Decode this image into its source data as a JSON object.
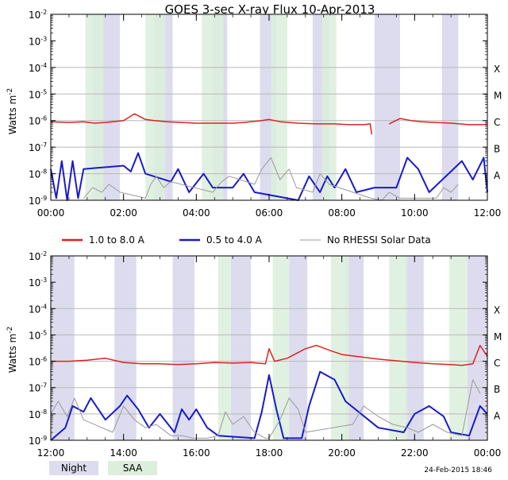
{
  "title": "GOES 3-sec X-ray Flux   10-Apr-2013",
  "ylabel": "Watts m",
  "ylabel_sup": "-2",
  "y_ticks": [
    {
      "exp": -2,
      "label_base": "10",
      "label_exp": "-2"
    },
    {
      "exp": -3,
      "label_base": "10",
      "label_exp": "-3"
    },
    {
      "exp": -4,
      "label_base": "10",
      "label_exp": "-4"
    },
    {
      "exp": -5,
      "label_base": "10",
      "label_exp": "-5"
    },
    {
      "exp": -6,
      "label_base": "10",
      "label_exp": "-6"
    },
    {
      "exp": -7,
      "label_base": "10",
      "label_exp": "-7"
    },
    {
      "exp": -8,
      "label_base": "10",
      "label_exp": "-8"
    },
    {
      "exp": -9,
      "label_base": "10",
      "label_exp": "-9"
    }
  ],
  "flare_classes": [
    {
      "label": "X",
      "exp": -4
    },
    {
      "label": "M",
      "exp": -5
    },
    {
      "label": "C",
      "exp": -6
    },
    {
      "label": "B",
      "exp": -7
    },
    {
      "label": "A",
      "exp": -8
    }
  ],
  "legend": [
    {
      "label": "1.0 to 8.0 A",
      "color": "#dd2222"
    },
    {
      "label": "0.5 to 4.0 A",
      "color": "#1a1acc"
    },
    {
      "label": "No RHESSI Solar Data",
      "color": "#999999"
    }
  ],
  "shade_legend": [
    {
      "label": "Night",
      "color": "#dcdcee"
    },
    {
      "label": "SAA",
      "color": "#dcefdc"
    }
  ],
  "timestamp": "24-Feb-2015 18:46",
  "colors": {
    "long": "#dd2222",
    "short": "#1a1acc",
    "norhessi": "#999999",
    "night": "#dcdcee",
    "saa": "#dcefdc"
  },
  "chart_data": [
    {
      "type": "line",
      "panel": "top",
      "x_range_hours": [
        0,
        12
      ],
      "x_ticks": [
        "00:00",
        "02:00",
        "04:00",
        "06:00",
        "08:00",
        "10:00",
        "12:00"
      ],
      "ylim_log10": [
        -9,
        -2
      ],
      "night_intervals": [
        [
          1.15,
          1.9
        ],
        [
          2.85,
          3.35
        ],
        [
          4.45,
          4.85
        ],
        [
          5.75,
          6.2
        ],
        [
          7.2,
          7.65
        ],
        [
          8.9,
          9.6
        ],
        [
          10.75,
          11.2
        ]
      ],
      "saa_intervals": [
        [
          0.95,
          1.45
        ],
        [
          2.6,
          3.15
        ],
        [
          4.15,
          4.75
        ],
        [
          6.05,
          6.5
        ],
        [
          7.45,
          7.85
        ]
      ],
      "series": [
        {
          "name": "1.0 to 8.0 A",
          "x": [
            0.0,
            0.5,
            0.9,
            1.2,
            1.5,
            2.0,
            2.3,
            2.6,
            2.85,
            3.2,
            3.6,
            4.0,
            4.5,
            5.0,
            5.3,
            5.8,
            6.0,
            6.3,
            6.8,
            7.3,
            7.8,
            8.2,
            8.6,
            8.78,
            8.82
          ],
          "y": [
            9e-07,
            8.5e-07,
            9e-07,
            8e-07,
            8.5e-07,
            1e-06,
            1.8e-06,
            1.1e-06,
            1e-06,
            9e-07,
            8.5e-07,
            8e-07,
            8e-07,
            8e-07,
            8.5e-07,
            1e-06,
            1.1e-06,
            9e-07,
            8e-07,
            7.5e-07,
            7.5e-07,
            7e-07,
            7e-07,
            7.5e-07,
            3e-07
          ]
        },
        {
          "name": "1.0 to 8.0 A (post gap)",
          "x": [
            9.3,
            9.6,
            9.9,
            10.2,
            10.6,
            11.0,
            11.5,
            12.0
          ],
          "y": [
            7.5e-07,
            1.2e-06,
            1e-06,
            9e-07,
            8.5e-07,
            8e-07,
            7e-07,
            7e-07
          ]
        },
        {
          "name": "0.5 to 4.0 A",
          "x": [
            0.0,
            0.15,
            0.3,
            0.45,
            0.6,
            0.75,
            0.9,
            2.0,
            2.2,
            2.4,
            2.6,
            3.3,
            3.5,
            3.8,
            4.2,
            4.45,
            5.0,
            5.3,
            5.6,
            6.8,
            7.1,
            7.4,
            7.6,
            7.8,
            8.1,
            8.4,
            8.9,
            9.5,
            9.8,
            10.1,
            10.4,
            11.3,
            11.6,
            11.9,
            12.0
          ],
          "y": [
            1.5e-08,
            1.2e-09,
            3e-08,
            1e-09,
            3e-08,
            1.2e-09,
            1.5e-08,
            2e-08,
            1.2e-08,
            6e-08,
            1e-08,
            5e-09,
            1.5e-08,
            2e-09,
            1e-08,
            3e-09,
            3e-09,
            1e-08,
            2e-09,
            1e-09,
            8e-09,
            2e-09,
            8e-09,
            3e-09,
            1.5e-08,
            2e-09,
            3e-09,
            3e-09,
            4e-08,
            1.5e-08,
            2e-09,
            3e-08,
            6e-09,
            4e-08,
            2e-09
          ]
        },
        {
          "name": "No RHESSI Solar Data",
          "x": [
            0.9,
            1.15,
            1.4,
            1.6,
            1.9,
            2.6,
            2.75,
            2.9,
            3.1,
            3.3,
            4.45,
            4.7,
            4.9,
            5.6,
            5.8,
            6.05,
            6.3,
            6.55,
            6.75,
            7.2,
            7.4,
            7.65,
            8.8,
            9.1,
            9.3,
            9.6,
            10.6,
            10.8,
            11.0,
            11.2
          ],
          "y": [
            1.2e-09,
            3e-09,
            2e-09,
            4e-09,
            2e-09,
            1.2e-09,
            4e-09,
            8e-09,
            3e-09,
            5e-09,
            2e-09,
            5e-09,
            8e-09,
            4e-09,
            1.5e-08,
            4e-08,
            6e-09,
            1.5e-08,
            3e-09,
            2e-09,
            1e-08,
            4e-09,
            1.2e-09,
            1e-09,
            2e-09,
            1.2e-09,
            1.2e-09,
            3e-09,
            2e-09,
            4e-09
          ]
        }
      ]
    },
    {
      "type": "line",
      "panel": "bottom",
      "x_range_hours": [
        12,
        24
      ],
      "x_ticks": [
        "12:00",
        "14:00",
        "16:00",
        "18:00",
        "20:00",
        "22:00",
        "00:00"
      ],
      "ylim_log10": [
        -9,
        -2
      ],
      "night_intervals": [
        [
          12.0,
          12.65
        ],
        [
          13.75,
          14.35
        ],
        [
          15.35,
          15.95
        ],
        [
          16.95,
          17.5
        ],
        [
          18.55,
          19.05
        ],
        [
          20.1,
          20.6
        ],
        [
          21.75,
          22.25
        ],
        [
          23.45,
          24.0
        ]
      ],
      "saa_intervals": [
        [
          16.6,
          16.95
        ],
        [
          18.1,
          18.55
        ],
        [
          19.7,
          20.2
        ],
        [
          21.3,
          21.8
        ],
        [
          22.95,
          23.45
        ]
      ],
      "series": [
        {
          "name": "1.0 to 8.0 A",
          "x": [
            12.0,
            12.5,
            13.0,
            13.5,
            14.0,
            14.5,
            15.0,
            15.5,
            16.0,
            16.5,
            17.0,
            17.5,
            17.9,
            18.0,
            18.15,
            18.5,
            19.0,
            19.3,
            19.7,
            20.0,
            21.0,
            22.0,
            22.5,
            23.0,
            23.3,
            23.6,
            23.8,
            24.0
          ],
          "y": [
            1e-06,
            1e-06,
            1.1e-06,
            1.3e-06,
            9e-07,
            8e-07,
            8e-07,
            7.5e-07,
            8e-07,
            9e-07,
            8.5e-07,
            9e-07,
            8e-07,
            3e-06,
            1e-06,
            1.3e-06,
            3e-06,
            4e-06,
            2.5e-06,
            1.8e-06,
            1.2e-06,
            9e-07,
            8e-07,
            7.5e-07,
            7e-07,
            8e-07,
            4e-06,
            1.5e-06
          ]
        },
        {
          "name": "0.5 to 4.0 A",
          "x": [
            12.0,
            12.4,
            12.6,
            12.9,
            13.1,
            13.5,
            13.9,
            14.1,
            14.4,
            14.7,
            15.0,
            15.4,
            15.6,
            15.8,
            16.0,
            16.3,
            16.6,
            17.6,
            17.8,
            18.0,
            18.2,
            18.4,
            18.9,
            19.1,
            19.4,
            19.8,
            20.1,
            21.0,
            21.7,
            22.0,
            22.4,
            22.8,
            23.0,
            23.5,
            23.8,
            24.0
          ],
          "y": [
            1e-09,
            3e-09,
            2e-08,
            1.2e-08,
            4e-08,
            6e-09,
            2e-08,
            5e-08,
            1.5e-08,
            3e-09,
            1e-08,
            2e-09,
            1.5e-08,
            6e-09,
            1.5e-08,
            3e-09,
            1.5e-09,
            1.2e-09,
            1.2e-08,
            3e-07,
            1.5e-08,
            1.2e-09,
            1.2e-09,
            2e-08,
            4e-07,
            2e-07,
            3e-08,
            3e-09,
            2e-09,
            1e-08,
            2e-08,
            8e-09,
            2e-09,
            1.5e-09,
            2e-08,
            1e-08
          ]
        },
        {
          "name": "No RHESSI Solar Data",
          "x": [
            12.0,
            12.2,
            12.45,
            12.65,
            12.9,
            13.7,
            14.0,
            14.3,
            14.6,
            14.9,
            15.3,
            15.6,
            15.9,
            16.3,
            16.6,
            16.8,
            17.0,
            17.3,
            17.6,
            17.9,
            18.0,
            18.3,
            18.55,
            18.8,
            19.0,
            20.3,
            20.6,
            21.0,
            21.4,
            21.8,
            22.1,
            22.5,
            22.9,
            23.3,
            23.6,
            23.8
          ],
          "y": [
            1e-08,
            3e-08,
            8e-09,
            4e-08,
            6e-09,
            2e-09,
            2e-08,
            6e-09,
            3e-09,
            4e-09,
            1.5e-09,
            1.5e-09,
            1.2e-09,
            1.2e-09,
            1.5e-09,
            1.2e-08,
            4e-09,
            8e-09,
            2e-09,
            1.2e-09,
            1.2e-09,
            6e-09,
            4e-08,
            1.5e-08,
            2e-09,
            4e-09,
            2e-08,
            8e-09,
            4e-09,
            3e-09,
            2e-09,
            4e-09,
            2e-09,
            1.5e-09,
            2e-07,
            6e-08
          ]
        }
      ]
    }
  ]
}
